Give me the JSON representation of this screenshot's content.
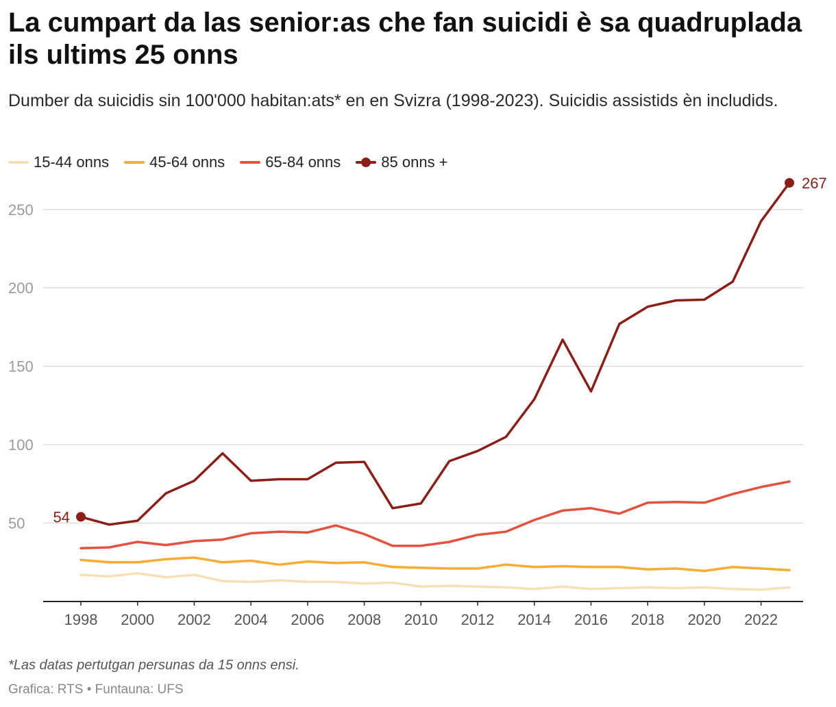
{
  "title": "La cumpart da las senior:as che fan suicidi è sa quadruplada ils ultims 25 onns",
  "subtitle": "Dumber da suicidis sin 100'000 habitan:ats* en en Svizra (1998-2023). Suicidis assistids èn includids.",
  "legend": [
    {
      "label": "15-44 onns",
      "color": "#f6e1b6"
    },
    {
      "label": "45-64 onns",
      "color": "#f9ac33"
    },
    {
      "label": "65-84 onns",
      "color": "#e5513f"
    },
    {
      "label": "85 onns +",
      "color": "#8b1e16"
    }
  ],
  "footnote": "*Las datas pertutgan persunas da 15 onns ensi.",
  "credit": "Grafica: RTS • Funtauna: UFS",
  "chart_data": {
    "type": "line",
    "title": "La cumpart da las senior:as che fan suicidi è sa quadruplada ils ultims 25 onns",
    "xlabel": "",
    "ylabel": "",
    "x": [
      1998,
      1999,
      2000,
      2001,
      2002,
      2003,
      2004,
      2005,
      2006,
      2007,
      2008,
      2009,
      2010,
      2011,
      2012,
      2013,
      2014,
      2015,
      2016,
      2017,
      2018,
      2019,
      2020,
      2021,
      2022,
      2023
    ],
    "xticks": [
      "1998",
      "2000",
      "2002",
      "2004",
      "2006",
      "2008",
      "2010",
      "2012",
      "2014",
      "2016",
      "2018",
      "2020",
      "2022"
    ],
    "yticks": [
      "50",
      "100",
      "150",
      "200",
      "250"
    ],
    "ylim": [
      0,
      270
    ],
    "grid": true,
    "series": [
      {
        "name": "15-44 onns",
        "color": "#f6e1b6",
        "values": [
          17,
          16,
          18,
          15.5,
          17,
          13,
          12.5,
          13.5,
          12.5,
          12.5,
          11.5,
          12,
          9.5,
          10,
          9.5,
          9,
          8,
          9.5,
          8,
          8.5,
          9,
          8.5,
          9,
          8,
          7.5,
          9
        ]
      },
      {
        "name": "45-64 onns",
        "color": "#f9ac33",
        "values": [
          26.5,
          25,
          25,
          27,
          28,
          25,
          26,
          23.5,
          25.5,
          24.5,
          25,
          22,
          21.5,
          21,
          21,
          23.5,
          22,
          22.5,
          22,
          22,
          20.5,
          21,
          19.5,
          22,
          21,
          20
        ]
      },
      {
        "name": "65-84 onns",
        "color": "#e5513f",
        "values": [
          34,
          34.5,
          38,
          36,
          38.5,
          39.5,
          43.5,
          44.5,
          44,
          48.5,
          43,
          35.5,
          35.5,
          38,
          42.5,
          44.5,
          52,
          58,
          59.5,
          56,
          63,
          63.5,
          63,
          68.5,
          73,
          76.5
        ]
      },
      {
        "name": "85 onns +",
        "color": "#8b1e16",
        "values": [
          54,
          49,
          51.5,
          69,
          77,
          94.5,
          77,
          78,
          78,
          88.5,
          89,
          59.5,
          62.5,
          89.5,
          96,
          105,
          129,
          167,
          134,
          177,
          188,
          192,
          192.5,
          204,
          242.5,
          267
        ]
      }
    ],
    "annotations": [
      {
        "series": "85 onns +",
        "x": 1998,
        "label": "54"
      },
      {
        "series": "85 onns +",
        "x": 2023,
        "label": "267"
      }
    ]
  }
}
